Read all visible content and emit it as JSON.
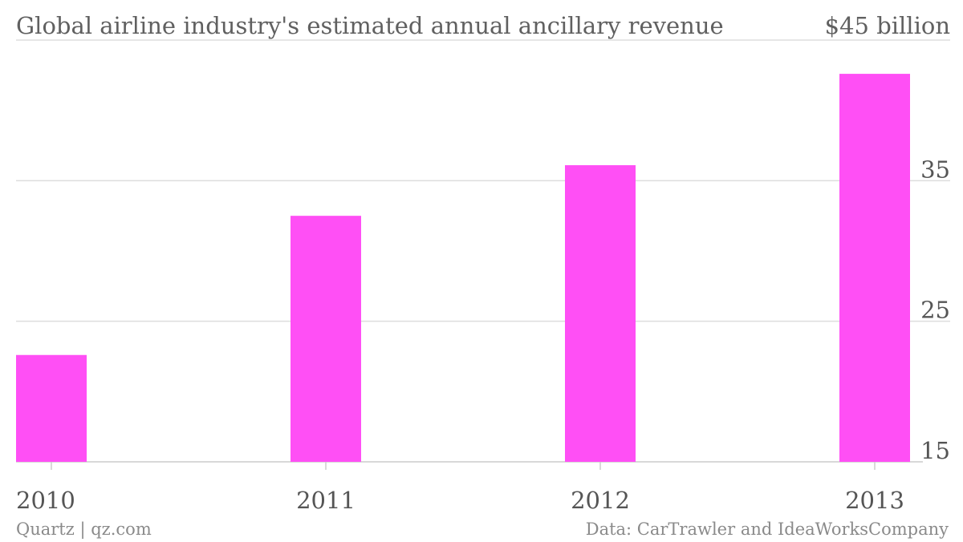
{
  "chart_data": {
    "type": "bar",
    "title": "Global airline industry's estimated annual ancillary revenue",
    "categories": [
      "2010",
      "2011",
      "2012",
      "2013"
    ],
    "values": [
      22.6,
      32.5,
      36.1,
      42.6
    ],
    "ylim": [
      15,
      45
    ],
    "yticks": [
      "15",
      "25",
      "35"
    ],
    "ytop_label": "$45 billion",
    "y_axis_side": "right",
    "grid": true,
    "bar_color": "#ff4ff5"
  },
  "footer": {
    "source": "Quartz | qz.com",
    "credit": "Data: CarTrawler and IdeaWorksCompany"
  }
}
